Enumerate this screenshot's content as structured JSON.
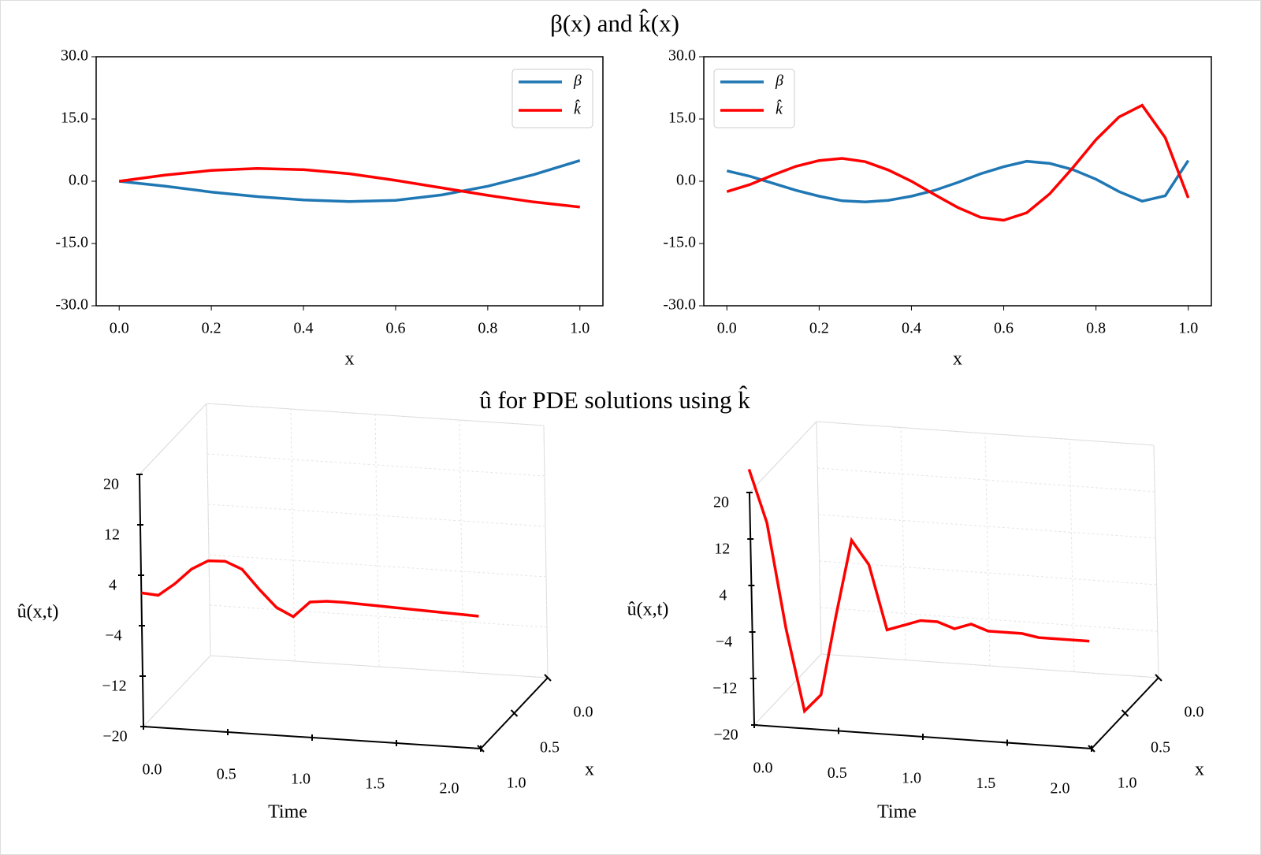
{
  "suptitles": [
    "β(x) and k̂(x)",
    "û for PDE solutions using k̂"
  ],
  "chart_data": [
    {
      "type": "line",
      "xlabel": "x",
      "x": [
        0,
        0.1,
        0.2,
        0.3,
        0.4,
        0.5,
        0.6,
        0.7,
        0.8,
        0.9,
        1.0
      ],
      "series": [
        {
          "name": "β",
          "color": "#1f77b4",
          "values": [
            0,
            -1.2,
            -2.6,
            -3.7,
            -4.5,
            -4.9,
            -4.6,
            -3.3,
            -1.2,
            1.6,
            5
          ]
        },
        {
          "name": "k̂",
          "color": "#ff0000",
          "values": [
            0,
            1.5,
            2.6,
            3.1,
            2.8,
            1.8,
            0.2,
            -1.6,
            -3.4,
            -5,
            -6.2
          ]
        }
      ],
      "xlim": [
        -0.05,
        1.05
      ],
      "xticks": [
        {
          "value": 0,
          "label": "0.0"
        },
        0.2,
        0.4,
        0.6,
        0.8,
        {
          "value": 1,
          "label": "1.0"
        }
      ],
      "ylim": [
        -30,
        30
      ],
      "yticks": [
        {
          "value": -30,
          "label": "-30.0"
        },
        {
          "value": -15,
          "label": "-15.0"
        },
        {
          "value": 0,
          "label": "0.0"
        },
        {
          "value": 15,
          "label": "15.0"
        },
        {
          "value": 30,
          "label": "30.0"
        }
      ],
      "legend": "upper right"
    },
    {
      "type": "line",
      "xlabel": "x",
      "x": [
        0,
        0.05,
        0.1,
        0.15,
        0.2,
        0.25,
        0.3,
        0.35,
        0.4,
        0.45,
        0.5,
        0.55,
        0.6,
        0.65,
        0.7,
        0.75,
        0.8,
        0.85,
        0.9,
        0.95,
        1.0
      ],
      "series": [
        {
          "name": "β",
          "color": "#1f77b4",
          "values": [
            2.5,
            1.2,
            -0.5,
            -2.2,
            -3.6,
            -4.7,
            -5.0,
            -4.6,
            -3.6,
            -2.2,
            -0.3,
            1.8,
            3.5,
            4.8,
            4.3,
            2.8,
            0.5,
            -2.5,
            -4.8,
            -3.5,
            5.0
          ]
        },
        {
          "name": "k̂",
          "color": "#ff0000",
          "values": [
            -2.5,
            -0.8,
            1.5,
            3.6,
            5.0,
            5.5,
            4.7,
            2.7,
            0.0,
            -3.2,
            -6.3,
            -8.7,
            -9.4,
            -7.6,
            -3.0,
            3.3,
            10.0,
            15.5,
            18.3,
            10.5,
            -4.0
          ]
        }
      ],
      "xlim": [
        -0.05,
        1.05
      ],
      "xticks": [
        {
          "value": 0,
          "label": "0.0"
        },
        0.2,
        0.4,
        0.6,
        0.8,
        {
          "value": 1,
          "label": "1.0"
        }
      ],
      "ylim": [
        -30,
        30
      ],
      "yticks": [
        {
          "value": -30,
          "label": "-30.0"
        },
        {
          "value": -15,
          "label": "-15.0"
        },
        {
          "value": 0,
          "label": "0.0"
        },
        {
          "value": 15,
          "label": "15.0"
        },
        {
          "value": 30,
          "label": "30.0"
        }
      ],
      "legend": "upper left"
    },
    {
      "type": "surface3d",
      "xlabel": "Time",
      "ylabel": "x",
      "zlabel": "û(x,t)",
      "x": [
        0,
        0.1,
        0.2,
        0.3,
        0.4,
        0.5,
        0.6,
        0.7,
        0.8,
        0.9,
        1.0,
        1.1,
        1.2,
        1.3,
        1.4,
        1.5,
        1.6,
        1.7,
        1.8,
        1.9,
        2.0
      ],
      "series": [
        {
          "color": "#ff0000",
          "values": [
            1.2,
            1.0,
            3.0,
            5.5,
            7.0,
            7.1,
            6.0,
            3.0,
            0.3,
            -1.0,
            1.5,
            1.8,
            1.8,
            1.7,
            1.6,
            1.5,
            1.4,
            1.3,
            1.2,
            1.1,
            1.0
          ]
        }
      ],
      "xlim": [
        0,
        2
      ],
      "xticks": [
        {
          "value": 0,
          "label": "0.0"
        },
        0.5,
        {
          "value": 1,
          "label": "1.0"
        },
        1.5,
        {
          "value": 2,
          "label": "2.0"
        }
      ],
      "ylim": [
        0,
        1
      ],
      "yticks": [
        {
          "value": 0,
          "label": "0.0"
        },
        0.5,
        {
          "value": 1,
          "label": "1.0"
        }
      ],
      "zlim": [
        -20,
        20
      ],
      "zticks": [
        {
          "value": -20,
          "label": "−20"
        },
        {
          "value": -12,
          "label": "−12"
        },
        {
          "value": -4,
          "label": "−4"
        },
        4,
        12,
        20
      ]
    },
    {
      "type": "surface3d",
      "xlabel": "Time",
      "ylabel": "x",
      "zlabel": "û(x,t)",
      "x": [
        0,
        0.1,
        0.2,
        0.3,
        0.4,
        0.5,
        0.6,
        0.7,
        0.8,
        0.9,
        1.0,
        1.1,
        1.2,
        1.3,
        1.4,
        1.5,
        1.6,
        1.7,
        1.8,
        1.9,
        2.0
      ],
      "series": [
        {
          "color": "#ff0000",
          "values": [
            24,
            15,
            -3,
            -17,
            -14,
            0,
            13,
            9,
            -2,
            -1,
            0,
            0,
            -1,
            0,
            -1,
            -1,
            -1,
            -1.5,
            -1.5,
            -1.5,
            -1.5
          ]
        }
      ],
      "xlim": [
        0,
        2
      ],
      "xticks": [
        {
          "value": 0,
          "label": "0.0"
        },
        0.5,
        {
          "value": 1,
          "label": "1.0"
        },
        1.5,
        {
          "value": 2,
          "label": "2.0"
        }
      ],
      "ylim": [
        0,
        1
      ],
      "yticks": [
        {
          "value": 0,
          "label": "0.0"
        },
        0.5,
        {
          "value": 1,
          "label": "1.0"
        }
      ],
      "zlim": [
        -20,
        20
      ],
      "zticks": [
        {
          "value": -20,
          "label": "−20"
        },
        {
          "value": -12,
          "label": "−12"
        },
        {
          "value": -4,
          "label": "−4"
        },
        4,
        12,
        20
      ]
    }
  ]
}
